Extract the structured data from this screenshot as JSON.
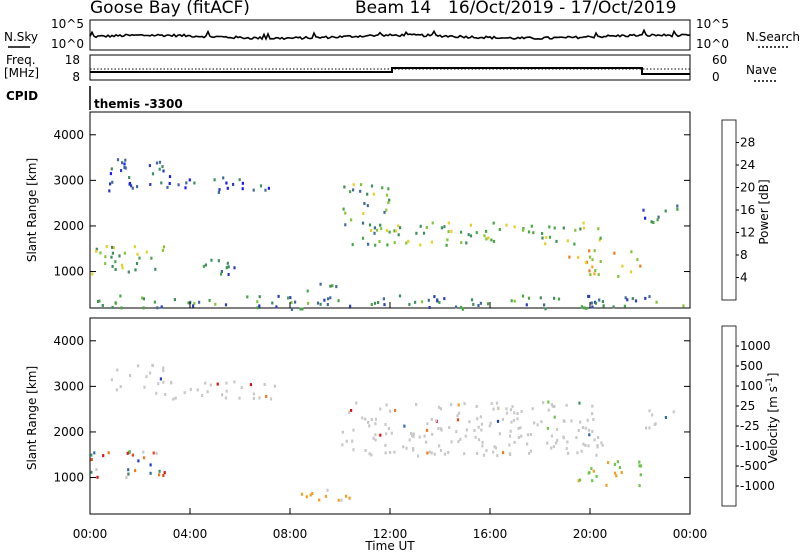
{
  "header": {
    "station": "Goose Bay (fitACF)",
    "beam": "Beam 14",
    "dates": "16/Oct/2019 - 17/Oct/2019"
  },
  "noise_panel": {
    "left_label": "N.Sky",
    "right_label": "N.Search",
    "left_ticks": [
      "10^5",
      "10^0"
    ],
    "right_ticks": [
      "10^5",
      "10^0"
    ]
  },
  "freq_panel": {
    "left_label_1": "Freq.",
    "left_label_2": "[MHz]",
    "left_ticks": [
      "18",
      "8"
    ],
    "right_label": "Nave",
    "right_ticks": [
      "60",
      "0"
    ]
  },
  "cpid_panel": {
    "label": "CPID",
    "program": "themis -3300"
  },
  "chart_data": [
    {
      "type": "heatmap",
      "title": "",
      "quantity": "Power",
      "xlabel": "Time UT",
      "ylabel": "Slant Range [km]",
      "x_ticks": [
        "00:00",
        "04:00",
        "08:00",
        "12:00",
        "16:00",
        "20:00",
        "00:00"
      ],
      "xlim_hours": [
        0,
        24
      ],
      "y_ticks": [
        1000,
        2000,
        3000,
        4000
      ],
      "ylim": [
        200,
        4500
      ],
      "colorbar": {
        "label": "Power [dB]",
        "ticks": [
          "4",
          "8",
          "12",
          "16",
          "20",
          "24",
          "28"
        ],
        "colors": [
          "#1a1aff",
          "#2a3dbb",
          "#3f6a9a",
          "#3e8d5c",
          "#49a645",
          "#85c53a",
          "#e6d12a",
          "#f5a623",
          "#f07a1e",
          "#e8461a",
          "#e01010"
        ]
      },
      "regions": [
        {
          "t": [
            0.7,
            3.0
          ],
          "r": [
            2800,
            3500
          ],
          "level": 0.15
        },
        {
          "t": [
            3.0,
            7.5
          ],
          "r": [
            2750,
            3150
          ],
          "level": 0.15
        },
        {
          "t": [
            0.0,
            3.0
          ],
          "r": [
            950,
            1600
          ],
          "level": 0.45
        },
        {
          "t": [
            4.5,
            6.0
          ],
          "r": [
            950,
            1300
          ],
          "level": 0.25
        },
        {
          "t": [
            8.0,
            10.0
          ],
          "r": [
            600,
            800
          ],
          "level": 0.3
        },
        {
          "t": [
            10.0,
            12.0
          ],
          "r": [
            1500,
            3000
          ],
          "level": 0.4
        },
        {
          "t": [
            12.0,
            20.5
          ],
          "r": [
            1600,
            2100
          ],
          "level": 0.45
        },
        {
          "t": [
            19.0,
            22.0
          ],
          "r": [
            900,
            1500
          ],
          "level": 0.65
        },
        {
          "t": [
            22.0,
            23.5
          ],
          "r": [
            2100,
            2500
          ],
          "level": 0.2
        },
        {
          "t": [
            0.0,
            24.0
          ],
          "r": [
            200,
            500
          ],
          "level": 0.3
        }
      ]
    },
    {
      "type": "heatmap",
      "title": "",
      "quantity": "Velocity",
      "xlabel": "Time UT",
      "ylabel": "Slant Range [km]",
      "x_ticks": [
        "00:00",
        "04:00",
        "08:00",
        "12:00",
        "16:00",
        "20:00",
        "00:00"
      ],
      "xlim_hours": [
        0,
        24
      ],
      "y_ticks": [
        1000,
        2000,
        3000,
        4000
      ],
      "ylim": [
        200,
        4500
      ],
      "colorbar": {
        "label": "Velocity [m s^-1]",
        "ticks": [
          "1000",
          "500",
          "100",
          "25",
          "-25",
          "-100",
          "-500",
          "-1000"
        ],
        "colors": [
          "#1d3fbf",
          "#2f6aa7",
          "#3c8f5f",
          "#6cc44a",
          "#c8c8c8",
          "#c8c8c8",
          "#f0a020",
          "#f0781e",
          "#e8461a",
          "#e01010"
        ]
      },
      "regions": [
        {
          "t": [
            0.7,
            3.0
          ],
          "r": [
            2800,
            3500
          ],
          "level": "gray"
        },
        {
          "t": [
            3.0,
            7.5
          ],
          "r": [
            2750,
            3150
          ],
          "level": "gray"
        },
        {
          "t": [
            0.0,
            3.0
          ],
          "r": [
            950,
            1600
          ],
          "level": "mixed"
        },
        {
          "t": [
            8.0,
            10.5
          ],
          "r": [
            500,
            800
          ],
          "level": "orange"
        },
        {
          "t": [
            10.0,
            20.5
          ],
          "r": [
            1500,
            2700
          ],
          "level": "gray"
        },
        {
          "t": [
            19.5,
            22.0
          ],
          "r": [
            800,
            1400
          ],
          "level": "green"
        },
        {
          "t": [
            22.0,
            23.5
          ],
          "r": [
            2100,
            2500
          ],
          "level": "gray"
        }
      ]
    }
  ]
}
